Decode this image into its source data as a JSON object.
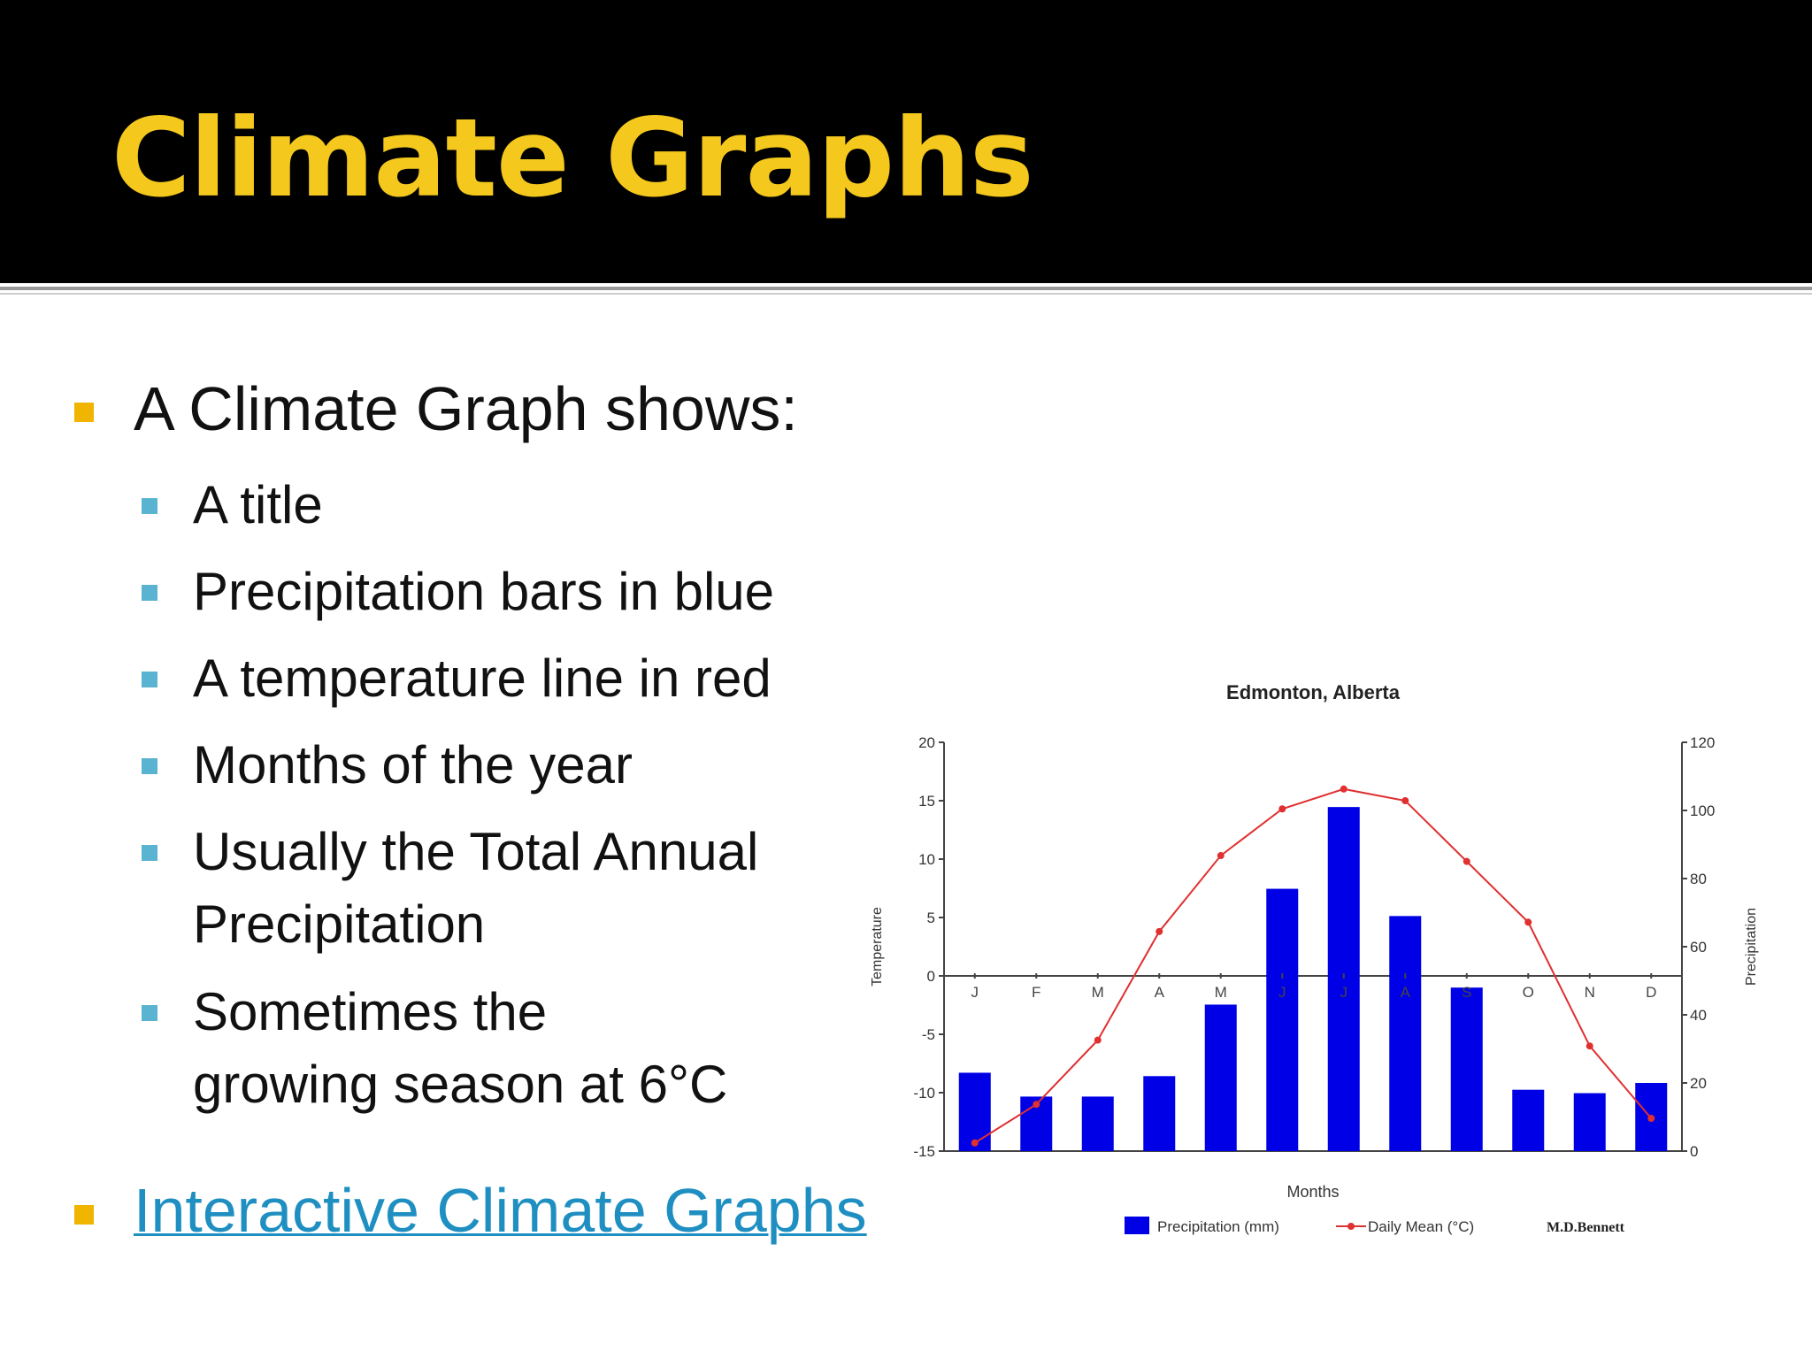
{
  "slide": {
    "title": "Climate Graphs",
    "intro": "A Climate Graph shows:",
    "items": [
      "A title",
      "Precipitation bars in blue",
      "A  temperature line in red",
      "Months of the year",
      "Usually the Total Annual",
      "Precipitation",
      "Sometimes the",
      "growing season at 6°C"
    ],
    "link_text": "Interactive Climate Graphs"
  },
  "colors": {
    "title": "#f4c81c",
    "bar": "#0000e6",
    "line": "#e03030",
    "link": "#1f8fc2"
  },
  "chart_data": {
    "type": "bar+line",
    "title": "Edmonton, Alberta",
    "xlabel": "Months",
    "ylabel_left": "Temperature",
    "ylabel_right": "Precipitation",
    "categories": [
      "J",
      "F",
      "M",
      "A",
      "M",
      "J",
      "J",
      "A",
      "S",
      "O",
      "N",
      "D"
    ],
    "left_axis": {
      "min": -15,
      "max": 20,
      "ticks": [
        20,
        15,
        10,
        5,
        0,
        -5,
        -10,
        -15
      ]
    },
    "right_axis": {
      "min": 0,
      "max": 120,
      "ticks": [
        120,
        100,
        80,
        60,
        40,
        20,
        0
      ]
    },
    "series": [
      {
        "name": "Precipitation (mm)",
        "kind": "bar",
        "axis": "right",
        "values": [
          23,
          16,
          16,
          22,
          43,
          77,
          101,
          69,
          48,
          18,
          17,
          20
        ]
      },
      {
        "name": "Daily Mean (°C)",
        "kind": "line",
        "axis": "left",
        "values": [
          -14.3,
          -11,
          -5.5,
          3.8,
          10.3,
          14.3,
          16,
          15,
          9.8,
          4.6,
          -6,
          -12.2
        ]
      }
    ],
    "credit": "M.D.Bennett"
  }
}
